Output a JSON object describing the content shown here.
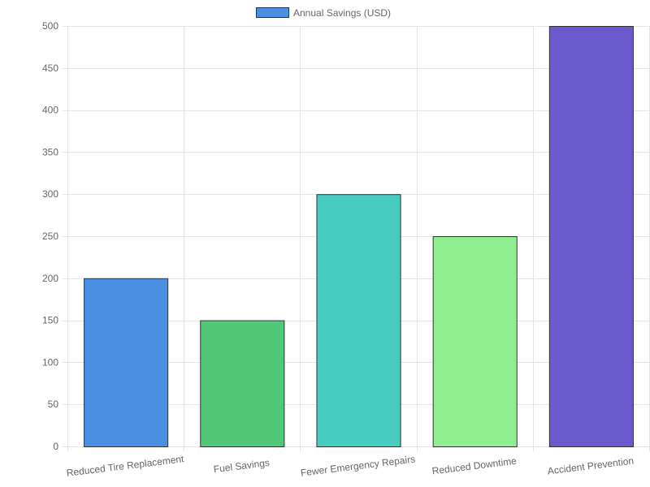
{
  "chart_data": {
    "type": "bar",
    "categories": [
      "Reduced Tire Replacement",
      "Fuel Savings",
      "Fewer Emergency Repairs",
      "Reduced Downtime",
      "Accident Prevention"
    ],
    "series": [
      {
        "name": "Annual Savings (USD)",
        "values": [
          200,
          150,
          300,
          250,
          500
        ],
        "colors": [
          "#4a90e2",
          "#50c878",
          "#48cbc1",
          "#90ee90",
          "#6a5acd"
        ],
        "border_color": "#333333"
      }
    ],
    "legend": {
      "position": "top",
      "swatch_color": "#4a90e2"
    },
    "ylim": [
      0,
      500
    ],
    "y_ticks": [
      0,
      50,
      100,
      150,
      200,
      250,
      300,
      350,
      400,
      450,
      500
    ],
    "grid": true,
    "grid_color": "#e5e5e5",
    "tick_label_color": "#666666"
  }
}
